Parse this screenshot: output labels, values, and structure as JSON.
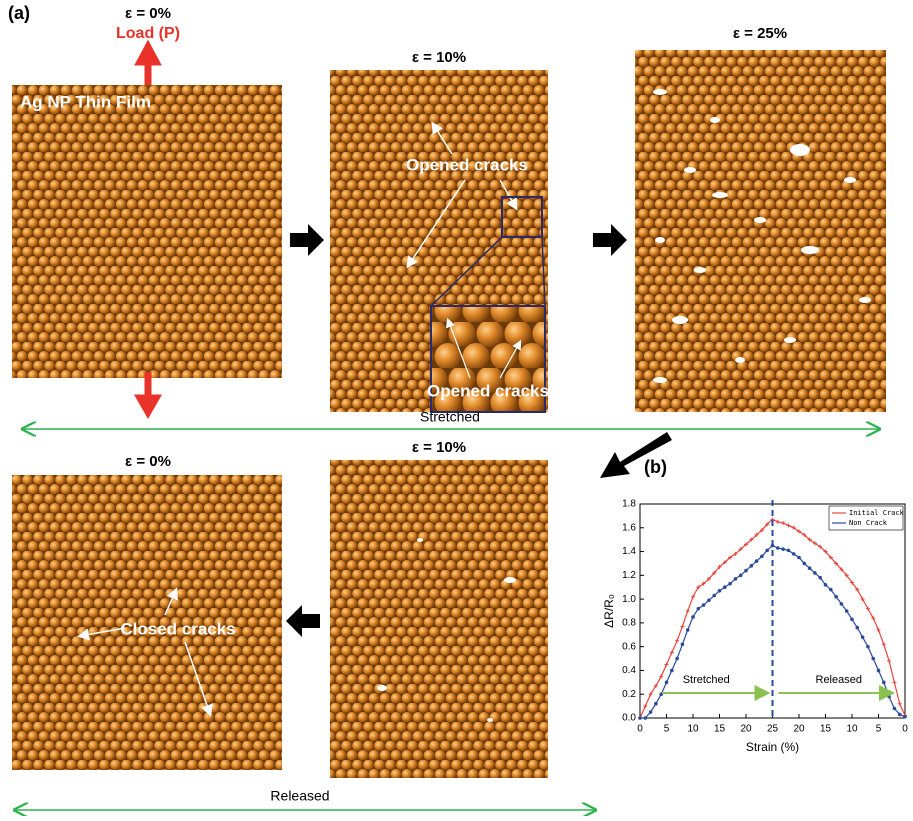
{
  "panel_a": {
    "label": "(a)",
    "top": {
      "frame1": {
        "strain": "ε = 0%",
        "load": "Load (P)",
        "film": "Ag NP Thin Film"
      },
      "frame2": {
        "strain": "ε = 10%",
        "crack_label": "Opened cracks",
        "inset_label": "Opened cracks"
      },
      "frame3": {
        "strain": "ε = 25%"
      },
      "arrow_label": "Stretched"
    },
    "bottom": {
      "frame1": {
        "strain": "ε = 10%"
      },
      "frame2": {
        "strain": "ε = 0%",
        "crack_label": "Closed cracks"
      },
      "arrow_label": "Released"
    }
  },
  "panel_b": {
    "label": "(b)"
  },
  "chart_data": {
    "type": "line",
    "x_label": "Strain (%)",
    "y_label": "ΔR/R₀",
    "annotations": [
      "Stretched",
      "Released"
    ],
    "vline": 25,
    "x": [
      0,
      1,
      2,
      3,
      4,
      5,
      6,
      7,
      8,
      9,
      10,
      11,
      12,
      13,
      14,
      15,
      16,
      17,
      18,
      19,
      20,
      21,
      22,
      23,
      24,
      25,
      26,
      27,
      28,
      29,
      30,
      31,
      32,
      33,
      34,
      35,
      36,
      37,
      38,
      39,
      40,
      41,
      42,
      43,
      44,
      45,
      46,
      47,
      48,
      49,
      50
    ],
    "series": [
      {
        "name": "Initial Crack",
        "color": "#e8453c",
        "values": [
          0,
          0.1,
          0.2,
          0.27,
          0.35,
          0.45,
          0.55,
          0.65,
          0.77,
          0.9,
          1.02,
          1.1,
          1.13,
          1.17,
          1.22,
          1.27,
          1.31,
          1.35,
          1.38,
          1.42,
          1.46,
          1.5,
          1.54,
          1.58,
          1.63,
          1.67,
          1.65,
          1.64,
          1.62,
          1.6,
          1.57,
          1.54,
          1.5,
          1.47,
          1.44,
          1.4,
          1.35,
          1.3,
          1.25,
          1.2,
          1.14,
          1.08,
          1.0,
          0.92,
          0.84,
          0.74,
          0.62,
          0.48,
          0.3,
          0.12,
          0.02
        ]
      },
      {
        "name": "Non Crack",
        "color": "#2a4a9a",
        "values": [
          0,
          0,
          0.05,
          0.12,
          0.2,
          0.3,
          0.4,
          0.5,
          0.62,
          0.74,
          0.85,
          0.92,
          0.95,
          0.99,
          1.03,
          1.07,
          1.1,
          1.13,
          1.17,
          1.2,
          1.24,
          1.28,
          1.32,
          1.36,
          1.41,
          1.45,
          1.43,
          1.42,
          1.41,
          1.38,
          1.35,
          1.3,
          1.26,
          1.22,
          1.18,
          1.12,
          1.08,
          1.02,
          0.96,
          0.9,
          0.83,
          0.76,
          0.68,
          0.6,
          0.5,
          0.4,
          0.3,
          0.18,
          0.08,
          0.03,
          0.01
        ]
      }
    ],
    "xlim": [
      0,
      50
    ],
    "xticks": [
      0,
      5,
      10,
      15,
      20,
      25,
      {
        "value": 30,
        "label": "20"
      },
      {
        "value": 35,
        "label": "15"
      },
      {
        "value": 40,
        "label": "10"
      },
      {
        "value": 45,
        "label": "5"
      },
      {
        "value": 50,
        "label": "0"
      }
    ],
    "ylim": [
      0,
      1.8
    ],
    "yticks": [
      {
        "value": 0,
        "label": "0.0"
      },
      0.2,
      0.4,
      0.6,
      0.8,
      {
        "value": 1,
        "label": "1.0"
      },
      1.2,
      1.4,
      1.6,
      1.8
    ],
    "legend": "upper right"
  }
}
